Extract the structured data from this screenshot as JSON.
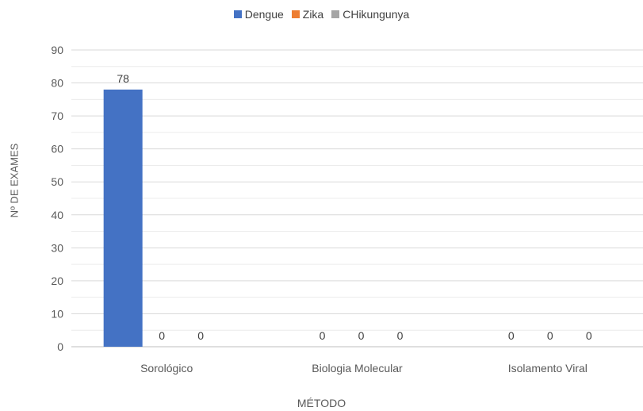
{
  "chart_data": {
    "type": "bar",
    "categories": [
      "Sorológico",
      "Biologia Molecular",
      "Isolamento Viral"
    ],
    "series": [
      {
        "name": "Dengue",
        "values": [
          78,
          0,
          0
        ],
        "color": "#4472C4"
      },
      {
        "name": "Zika",
        "values": [
          0,
          0,
          0
        ],
        "color": "#ED7D31"
      },
      {
        "name": "CHikungunya",
        "values": [
          0,
          0,
          0
        ],
        "color": "#A5A5A5"
      }
    ],
    "title": "",
    "xlabel": "MÉTODO",
    "ylabel": "Nº DE EXAMES",
    "ylim": [
      0,
      90
    ],
    "yticks": [
      0,
      10,
      20,
      30,
      40,
      50,
      60,
      70,
      80,
      90
    ],
    "grid": true,
    "legend_position": "top"
  }
}
